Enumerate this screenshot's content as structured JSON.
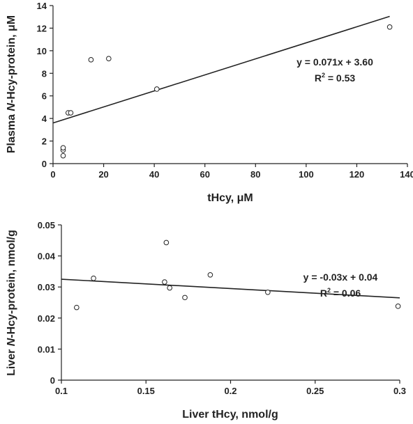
{
  "chart_data": [
    {
      "type": "scatter",
      "xlabel": "tHcy, μM",
      "ylabel_prefix": "Plasma ",
      "ylabel_italic": "N",
      "ylabel_suffix": "-Hcy-protein, μM",
      "xlim": [
        0,
        140
      ],
      "ylim": [
        0,
        14
      ],
      "xticks": [
        0,
        20,
        40,
        60,
        80,
        100,
        120,
        140
      ],
      "yticks": [
        0,
        2,
        4,
        6,
        8,
        10,
        12,
        14
      ],
      "points": [
        {
          "x": 4,
          "y": 0.7
        },
        {
          "x": 4,
          "y": 1.2
        },
        {
          "x": 4,
          "y": 1.4
        },
        {
          "x": 6,
          "y": 4.5
        },
        {
          "x": 7,
          "y": 4.5
        },
        {
          "x": 15,
          "y": 9.2
        },
        {
          "x": 22,
          "y": 9.3
        },
        {
          "x": 41,
          "y": 6.6
        },
        {
          "x": 133,
          "y": 12.1
        }
      ],
      "fit": {
        "slope": 0.071,
        "intercept": 3.6,
        "x_range": [
          0,
          133
        ]
      },
      "equation": "y = 0.071x + 3.60",
      "r2_prefix": "R",
      "r2_sup": "2",
      "r2_value": " = 0.53"
    },
    {
      "type": "scatter",
      "xlabel": "Liver tHcy, nmol/g",
      "ylabel_prefix": "Liver ",
      "ylabel_italic": "N",
      "ylabel_suffix": "-Hcy-protein, nmol/g",
      "xlim": [
        0.1,
        0.3
      ],
      "ylim": [
        0,
        0.05
      ],
      "xticks": [
        "0.1",
        "0.15",
        "0.2",
        "0.25",
        "0.3"
      ],
      "yticks": [
        "0",
        "0.01",
        "0.02",
        "0.03",
        "0.04",
        "0.05"
      ],
      "points": [
        {
          "x": 0.109,
          "y": 0.0234
        },
        {
          "x": 0.119,
          "y": 0.0328
        },
        {
          "x": 0.161,
          "y": 0.0316
        },
        {
          "x": 0.162,
          "y": 0.0443
        },
        {
          "x": 0.164,
          "y": 0.0297
        },
        {
          "x": 0.173,
          "y": 0.0266
        },
        {
          "x": 0.188,
          "y": 0.0339
        },
        {
          "x": 0.222,
          "y": 0.0283
        },
        {
          "x": 0.299,
          "y": 0.0238
        }
      ],
      "fit": {
        "slope": -0.03,
        "intercept": 0.0355,
        "x_range": [
          0.1,
          0.3
        ]
      },
      "equation": "y = -0.03x + 0.04",
      "r2_prefix": "R",
      "r2_sup": "2",
      "r2_value": " = 0.06"
    }
  ]
}
